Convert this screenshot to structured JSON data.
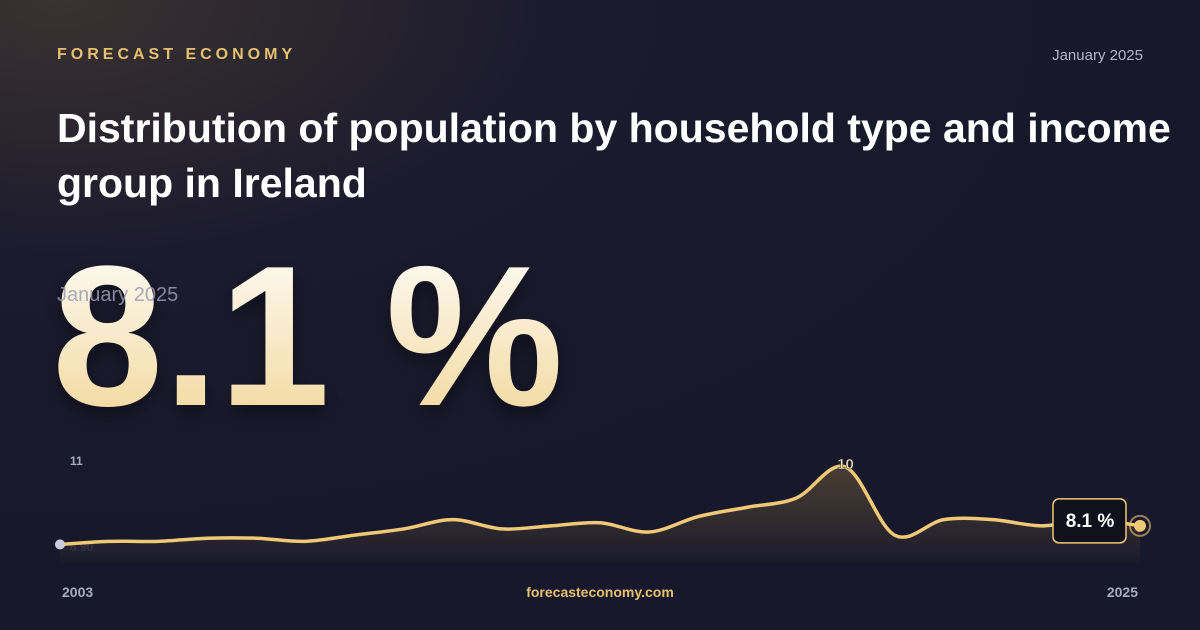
{
  "brand": "FORECAST ECONOMY",
  "date": "January 2025",
  "footer": "forecasteconomy.com",
  "chart_data": {
    "type": "line",
    "title": "Distribution of population by household type and income group in Ireland",
    "subtitle": "January 2025",
    "x": [
      2003,
      2004,
      2005,
      2006,
      2007,
      2008,
      2009,
      2010,
      2011,
      2012,
      2013,
      2014,
      2015,
      2016,
      2017,
      2018,
      2019,
      2020,
      2021,
      2022,
      2023,
      2024,
      2025
    ],
    "xlim": [
      2003,
      2025
    ],
    "xticks": [
      2003,
      2025
    ],
    "series": [
      {
        "color": "#f0c976",
        "values": [
          7.5,
          7.6,
          7.6,
          7.7,
          7.7,
          7.6,
          7.8,
          8.0,
          8.3,
          8.0,
          8.1,
          8.2,
          7.9,
          8.4,
          8.7,
          9.0,
          10,
          7.8,
          8.3,
          8.3,
          8.1,
          8.3,
          8.1
        ],
        "value_labels": [
          null,
          null,
          null,
          null,
          null,
          null,
          null,
          null,
          null,
          null,
          null,
          null,
          null,
          null,
          null,
          null,
          "10",
          null,
          null,
          null,
          null,
          null,
          "8.1 %"
        ]
      }
    ],
    "ylim": [
      6.9,
      11
    ],
    "yticks": [
      {
        "value": 6.9,
        "label": "6.90"
      },
      11
    ]
  }
}
